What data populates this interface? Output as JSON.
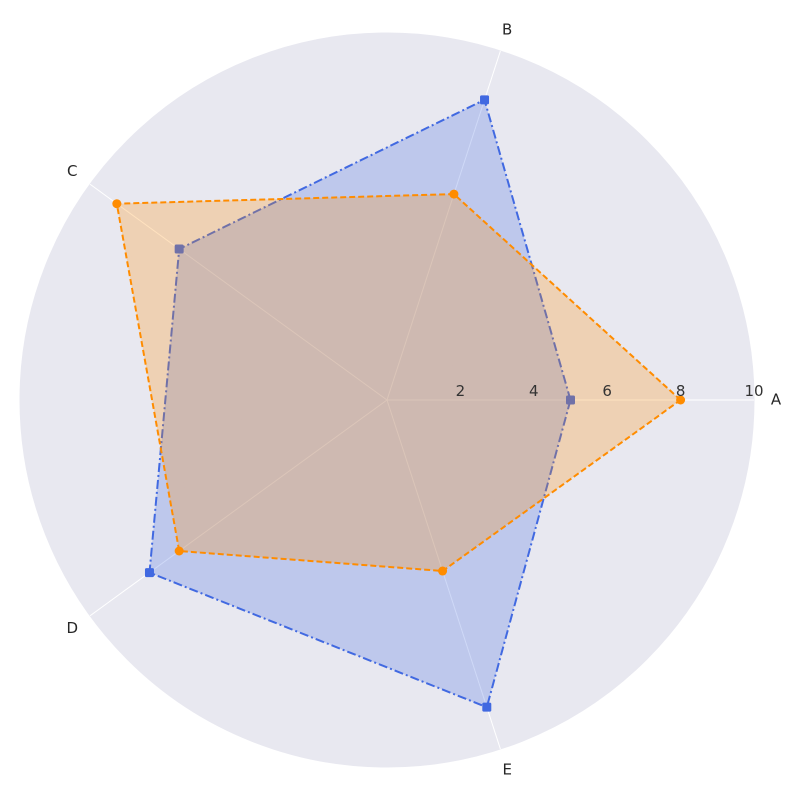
{
  "chart_data": {
    "type": "radar",
    "categories": [
      "A",
      "B",
      "C",
      "D",
      "E"
    ],
    "radial_ticks": [
      2,
      4,
      6,
      8,
      10
    ],
    "rlim": [
      0,
      10
    ],
    "grid": true,
    "legend": "none",
    "background": "#e8e8f0",
    "series": [
      {
        "values": [
          5.0,
          8.6,
          7.0,
          8.0,
          8.8
        ],
        "color": "#4169e1",
        "fill": "#4169e1",
        "line_style": "dash-dot",
        "marker": "square"
      },
      {
        "values": [
          8.0,
          5.9,
          9.1,
          7.0,
          4.9
        ],
        "color": "#ff8c00",
        "fill": "#ff8c00",
        "line_style": "dashed",
        "marker": "circle"
      }
    ]
  }
}
